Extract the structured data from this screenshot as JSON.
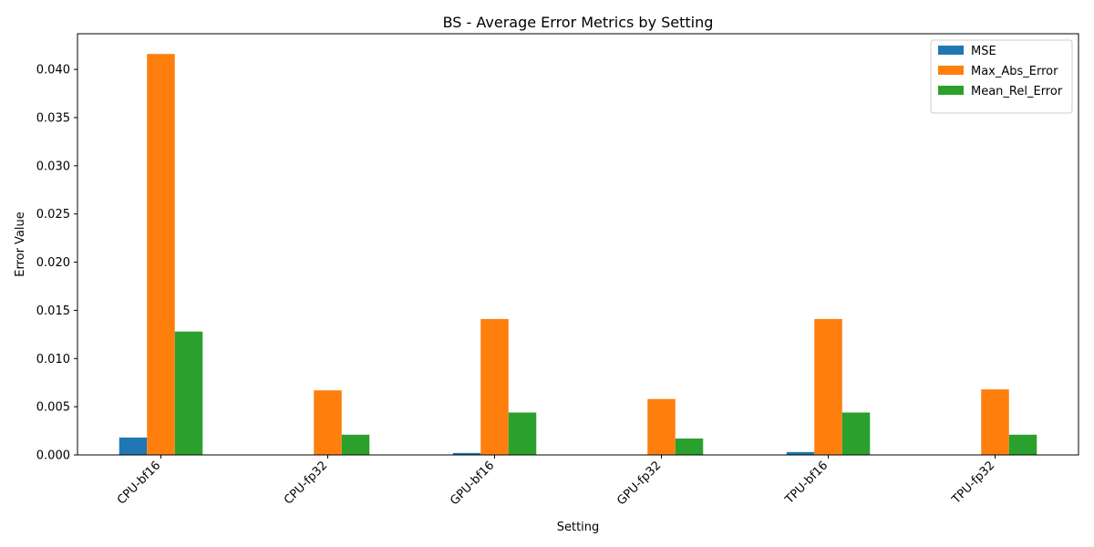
{
  "chart_data": {
    "type": "bar",
    "title": "BS - Average Error Metrics by Setting",
    "xlabel": "Setting",
    "ylabel": "Error Value",
    "categories": [
      "CPU-bf16",
      "CPU-fp32",
      "GPU-bf16",
      "GPU-fp32",
      "TPU-bf16",
      "TPU-fp32"
    ],
    "series": [
      {
        "name": "MSE",
        "color": "#1f77b4",
        "values": [
          0.0018,
          0.0,
          0.0002,
          0.0,
          0.0003,
          0.0
        ]
      },
      {
        "name": "Max_Abs_Error",
        "color": "#ff7f0e",
        "values": [
          0.0416,
          0.0067,
          0.0141,
          0.0058,
          0.0141,
          0.0068
        ]
      },
      {
        "name": "Mean_Rel_Error",
        "color": "#2ca02c",
        "values": [
          0.0128,
          0.0021,
          0.0044,
          0.0017,
          0.0044,
          0.0021
        ]
      }
    ],
    "yticks": [
      "0.000",
      "0.005",
      "0.010",
      "0.015",
      "0.020",
      "0.025",
      "0.030",
      "0.035",
      "0.040"
    ],
    "ylim": [
      0,
      0.0437
    ],
    "grid": false,
    "legend_position": "top-right"
  }
}
